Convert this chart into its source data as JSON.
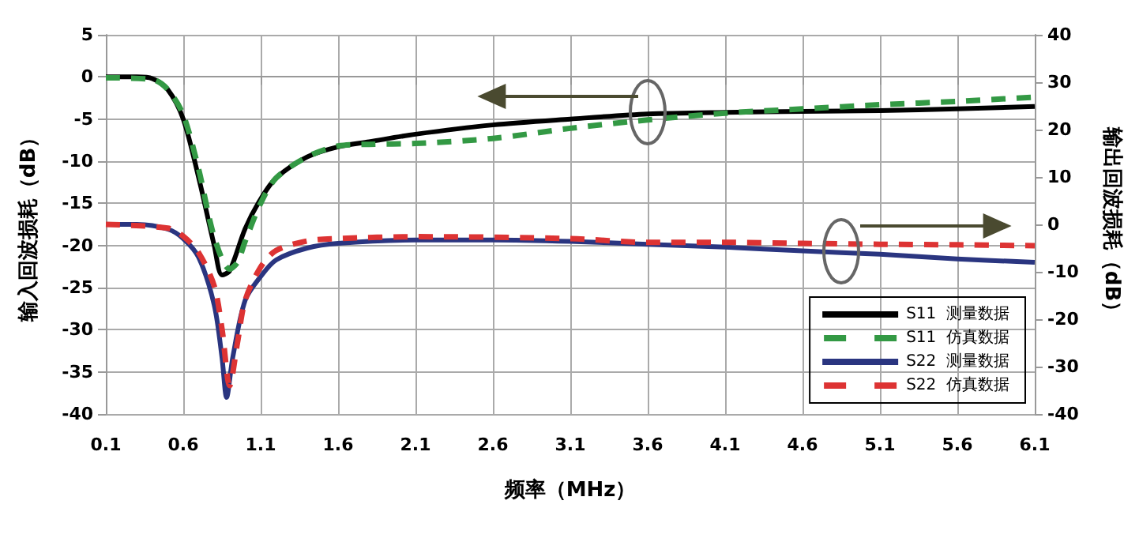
{
  "chart_data": {
    "type": "line",
    "xlabel": "频率（MHz）",
    "ylabel": "输入回波损耗（dB）",
    "y2label": "输出回波损耗（dB）",
    "xlim": [
      0.1,
      6.1
    ],
    "xticks": [
      0.1,
      0.6,
      1.1,
      1.6,
      2.1,
      2.6,
      3.1,
      3.6,
      4.1,
      4.6,
      5.1,
      5.6,
      6.1
    ],
    "ylim": [
      -40,
      5
    ],
    "yticks": [
      -40,
      -35,
      -30,
      -25,
      -20,
      -15,
      -10,
      -5,
      0,
      5
    ],
    "y2lim": [
      -40,
      40
    ],
    "y2ticks": [
      -40,
      -30,
      -20,
      -10,
      0,
      10,
      20,
      30,
      40
    ],
    "grid": true,
    "legend": "bottom right",
    "marker": "none",
    "series": [
      {
        "name": "S11  测量数据",
        "color": "#000000",
        "line_style": "solid",
        "x": [
          0.1,
          0.3,
          0.4,
          0.5,
          0.6,
          0.7,
          0.8,
          0.85,
          0.9,
          1.0,
          1.1,
          1.2,
          1.4,
          1.6,
          1.8,
          2.1,
          2.6,
          3.1,
          3.6,
          4.1,
          4.6,
          5.1,
          5.6,
          6.1
        ],
        "values": [
          0,
          0,
          -0.2,
          -1.5,
          -5,
          -12,
          -20,
          -23.5,
          -23,
          -18,
          -14.5,
          -12,
          -9.5,
          -8.3,
          -7.7,
          -6.8,
          -5.7,
          -5,
          -4.4,
          -4.2,
          -4.1,
          -4,
          -3.8,
          -3.5
        ]
      },
      {
        "name": "S11  仿真数据",
        "color": "#339944",
        "line_style": "dashed",
        "x": [
          0.1,
          0.4,
          0.5,
          0.6,
          0.7,
          0.8,
          0.9,
          0.95,
          1.0,
          1.1,
          1.2,
          1.4,
          1.6,
          1.8,
          2.1,
          2.6,
          3.1,
          3.6,
          4.1,
          4.6,
          5.1,
          5.6,
          6.1
        ],
        "values": [
          -0.1,
          -0.3,
          -1.5,
          -4.5,
          -11,
          -19,
          -22.8,
          -22,
          -19.5,
          -15,
          -12,
          -9.5,
          -8.2,
          -8,
          -7.9,
          -7.3,
          -6.1,
          -5.1,
          -4.3,
          -3.8,
          -3.3,
          -2.9,
          -2.4
        ]
      },
      {
        "name": "S22  测量数据",
        "color": "#2a3580",
        "line_style": "solid",
        "axis": "y2",
        "x": [
          0.1,
          0.3,
          0.5,
          0.6,
          0.7,
          0.8,
          0.85,
          0.88,
          0.92,
          1.0,
          1.1,
          1.2,
          1.4,
          1.6,
          2.1,
          2.6,
          3.1,
          3.6,
          4.1,
          4.6,
          5.1,
          5.6,
          6.1
        ],
        "values": [
          0,
          0,
          -1,
          -3,
          -7,
          -17,
          -28,
          -36.5,
          -28,
          -16,
          -11,
          -7.5,
          -5,
          -4,
          -3.3,
          -3.3,
          -3.6,
          -4.2,
          -4.8,
          -5.6,
          -6.3,
          -7.3,
          -8
        ]
      },
      {
        "name": "S22  仿真数据",
        "color": "#dd3333",
        "line_style": "dashed",
        "axis": "y2",
        "x": [
          0.1,
          0.5,
          0.6,
          0.7,
          0.8,
          0.85,
          0.9,
          0.95,
          1.0,
          1.1,
          1.2,
          1.4,
          1.6,
          2.1,
          3.1,
          3.6,
          4.1,
          4.6,
          5.1,
          5.6,
          6.1
        ],
        "values": [
          0,
          -0.8,
          -2.5,
          -6,
          -13,
          -22,
          -34,
          -25,
          -16,
          -9,
          -5.5,
          -3.5,
          -3,
          -2.6,
          -3,
          -3.8,
          -3.8,
          -4,
          -4.2,
          -4.3,
          -4.5
        ]
      }
    ]
  }
}
